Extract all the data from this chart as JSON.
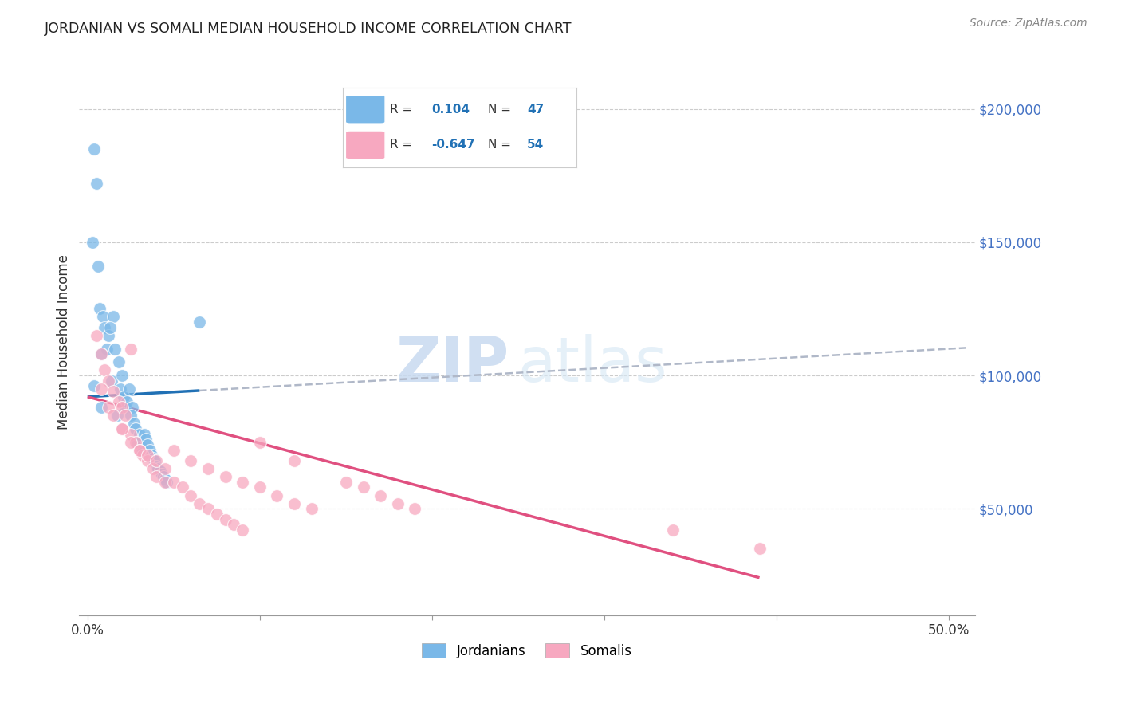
{
  "title": "JORDANIAN VS SOMALI MEDIAN HOUSEHOLD INCOME CORRELATION CHART",
  "source": "Source: ZipAtlas.com",
  "ylabel": "Median Household Income",
  "xlabel_ticks": [
    "0.0%",
    "",
    "",
    "",
    "",
    "50.0%"
  ],
  "xlabel_vals": [
    0.0,
    0.1,
    0.2,
    0.3,
    0.4,
    0.5
  ],
  "ytick_labels": [
    "$50,000",
    "$100,000",
    "$150,000",
    "$200,000"
  ],
  "ytick_vals": [
    50000,
    100000,
    150000,
    200000
  ],
  "xlim": [
    -0.005,
    0.515
  ],
  "ylim": [
    10000,
    215000
  ],
  "jordanian_color": "#7ab8e8",
  "somali_color": "#f7a8c0",
  "jordan_line_color": "#2171b5",
  "somali_line_color": "#e05080",
  "dashed_line_color": "#b0b8c8",
  "watermark_zip": "ZIP",
  "watermark_atlas": "atlas",
  "jordanian_x": [
    0.004,
    0.005,
    0.003,
    0.006,
    0.007,
    0.009,
    0.01,
    0.012,
    0.011,
    0.008,
    0.015,
    0.013,
    0.016,
    0.018,
    0.014,
    0.02,
    0.019,
    0.021,
    0.022,
    0.017,
    0.024,
    0.023,
    0.026,
    0.025,
    0.027,
    0.028,
    0.03,
    0.029,
    0.031,
    0.032,
    0.033,
    0.034,
    0.035,
    0.036,
    0.037,
    0.038,
    0.039,
    0.04,
    0.041,
    0.042,
    0.043,
    0.044,
    0.045,
    0.046,
    0.065,
    0.004,
    0.008
  ],
  "jordanian_y": [
    185000,
    172000,
    150000,
    141000,
    125000,
    122000,
    118000,
    115000,
    110000,
    108000,
    122000,
    118000,
    110000,
    105000,
    98000,
    100000,
    95000,
    92000,
    88000,
    85000,
    95000,
    90000,
    88000,
    85000,
    82000,
    80000,
    78000,
    75000,
    73000,
    72000,
    78000,
    76000,
    74000,
    72000,
    70000,
    69000,
    68000,
    66000,
    65000,
    64000,
    63000,
    62000,
    61000,
    60000,
    120000,
    96000,
    88000
  ],
  "somali_x": [
    0.005,
    0.008,
    0.01,
    0.012,
    0.015,
    0.018,
    0.02,
    0.022,
    0.025,
    0.008,
    0.012,
    0.015,
    0.02,
    0.025,
    0.028,
    0.03,
    0.032,
    0.035,
    0.038,
    0.04,
    0.045,
    0.05,
    0.06,
    0.07,
    0.08,
    0.09,
    0.1,
    0.11,
    0.12,
    0.13,
    0.02,
    0.025,
    0.03,
    0.035,
    0.04,
    0.045,
    0.05,
    0.055,
    0.06,
    0.065,
    0.07,
    0.075,
    0.08,
    0.085,
    0.09,
    0.15,
    0.16,
    0.17,
    0.18,
    0.19,
    0.34,
    0.39,
    0.1,
    0.12
  ],
  "somali_y": [
    115000,
    108000,
    102000,
    98000,
    94000,
    90000,
    88000,
    85000,
    110000,
    95000,
    88000,
    85000,
    80000,
    78000,
    75000,
    72000,
    70000,
    68000,
    65000,
    62000,
    60000,
    72000,
    68000,
    65000,
    62000,
    60000,
    58000,
    55000,
    52000,
    50000,
    80000,
    75000,
    72000,
    70000,
    68000,
    65000,
    60000,
    58000,
    55000,
    52000,
    50000,
    48000,
    46000,
    44000,
    42000,
    60000,
    58000,
    55000,
    52000,
    50000,
    42000,
    35000,
    75000,
    68000
  ]
}
